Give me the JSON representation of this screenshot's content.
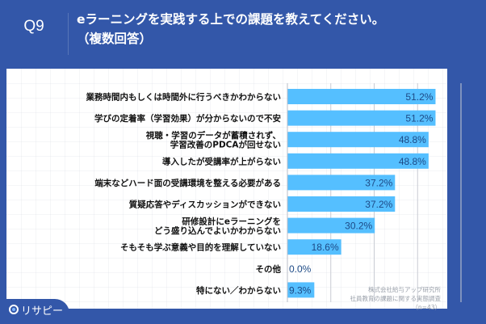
{
  "header": {
    "question_number": "Q9",
    "title_line1": "eラーニングを実践する上での課題を教えてください。",
    "title_line2": "（複数回答）"
  },
  "logo": {
    "icon": "pin-icon",
    "text": "リサピー"
  },
  "source": {
    "line1": "株式会社給与アップ研究所",
    "line2": "社員教育の課題に関する実態調査",
    "line3": "（n=43）"
  },
  "colors": {
    "background": "#3357a9",
    "bar": "#55bfff",
    "value_text": "#1d4a86"
  },
  "chart_data": {
    "type": "bar",
    "orientation": "horizontal",
    "title": "eラーニングを実践する上での課題を教えてください。（複数回答）",
    "xlabel": "",
    "ylabel": "",
    "xlim": [
      0,
      60
    ],
    "gridlines": [
      15,
      30,
      45,
      60
    ],
    "grid": true,
    "unit": "%",
    "categories": [
      [
        "業務時間内もしくは時間外に行うべきかわからない"
      ],
      [
        "学びの定着率（学習効果）が分からないので不安"
      ],
      [
        "視聴・学習のデータが蓄積されず、",
        "学習改善のPDCAが回せない"
      ],
      [
        "導入したが受講率が上がらない"
      ],
      [
        "端末などハード面の受講環境を整える必要がある"
      ],
      [
        "質疑応答やディスカッションができない"
      ],
      [
        "研修設計にeラーニングを",
        "どう盛り込んでよいかわからない"
      ],
      [
        "そもそも学ぶ意義や目的を理解していない"
      ],
      [
        "その他"
      ],
      [
        "特にない／わからない"
      ]
    ],
    "values": [
      51.2,
      51.2,
      48.8,
      48.8,
      37.2,
      37.2,
      30.2,
      18.6,
      0.0,
      9.3
    ],
    "value_labels": [
      "51.2%",
      "51.2%",
      "48.8%",
      "48.8%",
      "37.2%",
      "37.2%",
      "30.2%",
      "18.6%",
      "0.0%",
      "9.3%"
    ]
  }
}
